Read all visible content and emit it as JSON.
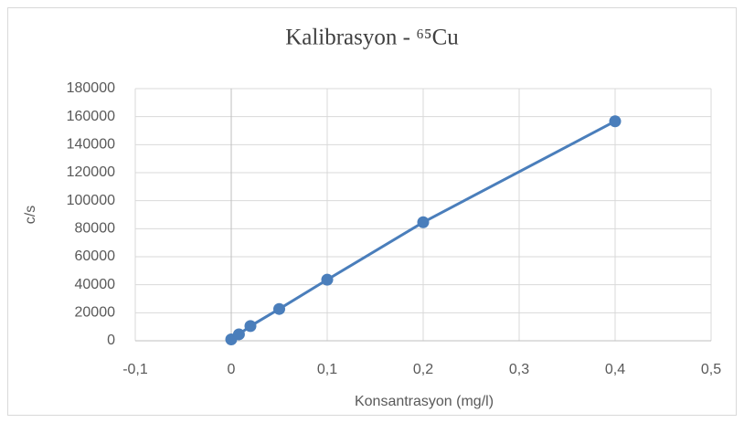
{
  "chart_data": {
    "type": "line",
    "title": "Kalibrasyon - ⁶⁵Cu",
    "xlabel": "Konsantrasyon (mg/l)",
    "ylabel": "c/s",
    "x": [
      0,
      0.008,
      0.02,
      0.05,
      0.1,
      0.2,
      0.4
    ],
    "series": [
      {
        "name": "c/s",
        "color": "#4a7ebb",
        "values": [
          1000,
          4600,
          10500,
          22700,
          43600,
          84600,
          156700
        ]
      }
    ],
    "xlim": [
      -0.1,
      0.5
    ],
    "xticks": [
      {
        "value": -0.1,
        "label": "-0,1"
      },
      0,
      {
        "value": 0.1,
        "label": "0,1"
      },
      {
        "value": 0.2,
        "label": "0,2"
      },
      {
        "value": 0.3,
        "label": "0,3"
      },
      {
        "value": 0.4,
        "label": "0,4"
      },
      {
        "value": 0.5,
        "label": "0,5"
      }
    ],
    "ylim": [
      0,
      180000
    ],
    "yticks": [
      0,
      20000,
      40000,
      60000,
      80000,
      100000,
      120000,
      140000,
      160000,
      180000
    ],
    "grid": true
  }
}
